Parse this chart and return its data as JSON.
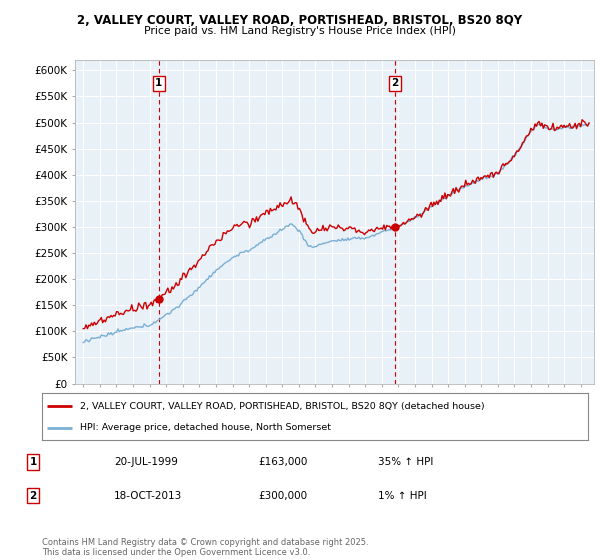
{
  "title1": "2, VALLEY COURT, VALLEY ROAD, PORTISHEAD, BRISTOL, BS20 8QY",
  "title2": "Price paid vs. HM Land Registry's House Price Index (HPI)",
  "bg_color": "#e8f0f8",
  "grid_color": "#ffffff",
  "hpi_color": "#7aafd4",
  "price_color": "#cc0000",
  "dashed_color": "#cc0000",
  "ylim": [
    0,
    620000
  ],
  "yticks": [
    0,
    50000,
    100000,
    150000,
    200000,
    250000,
    300000,
    350000,
    400000,
    450000,
    500000,
    550000,
    600000
  ],
  "ytick_labels": [
    "£0",
    "£50K",
    "£100K",
    "£150K",
    "£200K",
    "£250K",
    "£300K",
    "£350K",
    "£400K",
    "£450K",
    "£500K",
    "£550K",
    "£600K"
  ],
  "sale1_date": 1999.55,
  "sale1_price": 163000,
  "sale1_label": "1",
  "sale2_date": 2013.79,
  "sale2_price": 300000,
  "sale2_label": "2",
  "legend_line1": "2, VALLEY COURT, VALLEY ROAD, PORTISHEAD, BRISTOL, BS20 8QY (detached house)",
  "legend_line2": "HPI: Average price, detached house, North Somerset",
  "table_row1": [
    "1",
    "20-JUL-1999",
    "£163,000",
    "35% ↑ HPI"
  ],
  "table_row2": [
    "2",
    "18-OCT-2013",
    "£300,000",
    "1% ↑ HPI"
  ],
  "footnote": "Contains HM Land Registry data © Crown copyright and database right 2025.\nThis data is licensed under the Open Government Licence v3.0.",
  "xlim_start": 1994.5,
  "xlim_end": 2025.8,
  "xticks_start": 1995,
  "xticks_end": 2025
}
